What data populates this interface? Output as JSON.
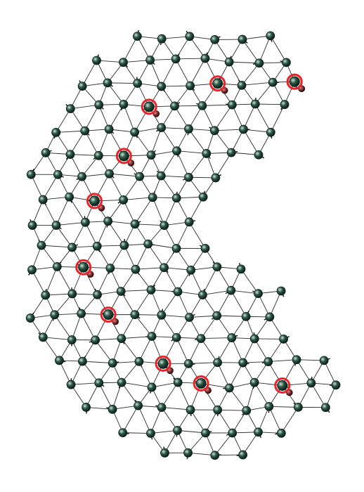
{
  "diagram": {
    "type": "triangular-mesh-node-graph",
    "node_count": 303,
    "highlighted_node_count": 11,
    "colors": {
      "background": "#ffffff",
      "edge": "#2a2a2a",
      "node_fill": "#2f5a4a",
      "node_highlight": "#cfe6da",
      "node_outline": "#0d1f18",
      "selection_ring": "#e8242b",
      "secondary_node": "#7a2a2a"
    }
  }
}
